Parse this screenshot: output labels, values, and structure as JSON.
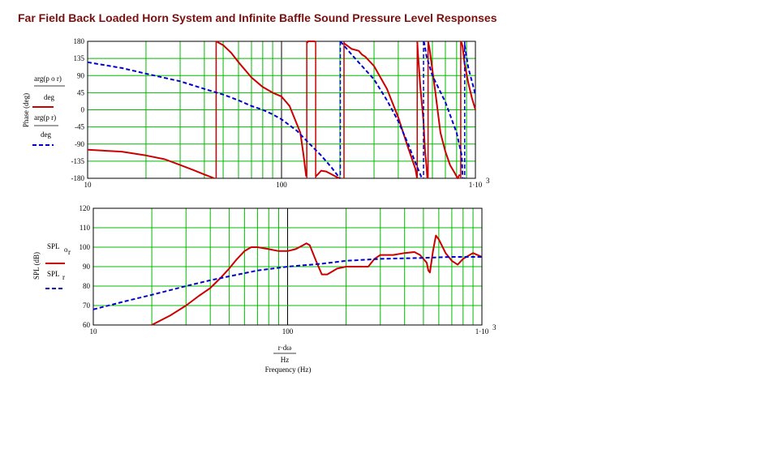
{
  "page_title": "Far Field Back Loaded Horn System and Infinite Baffle Sound Pressure Level Responses",
  "colors": {
    "title": "#7a1010",
    "grid": "#00bb00",
    "decade_line": "#000000",
    "horn_series": "#cc0000",
    "baffle_series": "#0000cc"
  },
  "chart_data": [
    {
      "type": "line",
      "ylabel": "Phase (deg)",
      "x_scale": "log",
      "xlim": [
        10,
        1000
      ],
      "ylim": [
        -180,
        180
      ],
      "y_ticks": [
        "180",
        "135",
        "90",
        "45",
        "0",
        "-45",
        "-90",
        "-135",
        "-180"
      ],
      "x_ticks": [
        "10",
        "100",
        "1·10"
      ],
      "x_tick_sup": "3",
      "grid": true,
      "legend": {
        "placement": "left",
        "series1_top": "arg(p o r)",
        "series1_bottom": "deg",
        "series2_top": "arg(p r)",
        "series2_bottom": "deg"
      },
      "series": [
        {
          "name": "arg(p o r)/deg",
          "color": "#cc0000",
          "style": "solid",
          "x": [
            10,
            15,
            20,
            25,
            30,
            35,
            40,
            45,
            46,
            50,
            55,
            60,
            70,
            80,
            90,
            100,
            110,
            125,
            130,
            134,
            135,
            137,
            138,
            140,
            145,
            148,
            149,
            150,
            155,
            160,
            170,
            185,
            195,
            200,
            210,
            230,
            250,
            260,
            270,
            300,
            350,
            400,
            450,
            490,
            500,
            501,
            505,
            510,
            520,
            540,
            550,
            560,
            565,
            570,
            580,
            620,
            660,
            700,
            740,
            780,
            810,
            830,
            840,
            850,
            860,
            880,
            920,
            960,
            1000
          ],
          "y": [
            -105,
            -110,
            -120,
            -130,
            -145,
            -158,
            -170,
            -180,
            180,
            170,
            150,
            125,
            85,
            60,
            45,
            35,
            10,
            -60,
            -120,
            -175,
            175,
            180,
            180,
            180,
            180,
            180,
            178,
            -175,
            -168,
            -160,
            -162,
            -172,
            -178,
            -180,
            175,
            160,
            155,
            145,
            140,
            115,
            55,
            -20,
            -100,
            -155,
            -180,
            180,
            150,
            120,
            60,
            -30,
            -110,
            -150,
            -180,
            180,
            160,
            50,
            -60,
            -110,
            -145,
            -165,
            -180,
            -170,
            180,
            175,
            165,
            120,
            70,
            30,
            0
          ]
        },
        {
          "name": "arg(p r)/deg",
          "color": "#0000cc",
          "style": "dash",
          "x": [
            10,
            15,
            20,
            30,
            40,
            50,
            60,
            70,
            80,
            90,
            100,
            120,
            140,
            160,
            180,
            200,
            201,
            230,
            260,
            300,
            350,
            400,
            450,
            500,
            530,
            540,
            545,
            560,
            600,
            700,
            800,
            850,
            860,
            880,
            920,
            1000
          ],
          "y": [
            125,
            110,
            95,
            75,
            55,
            40,
            25,
            10,
            0,
            -12,
            -25,
            -55,
            -90,
            -120,
            -150,
            -180,
            180,
            145,
            115,
            80,
            25,
            -30,
            -90,
            -150,
            -180,
            180,
            175,
            140,
            90,
            20,
            -60,
            -120,
            -180,
            170,
            110,
            40
          ]
        }
      ]
    },
    {
      "type": "line",
      "ylabel": "SPL (dB)",
      "xlabel": "Frequency (Hz)",
      "xlabel_top": "r·dω",
      "xlabel_den": "Hz",
      "x_scale": "log",
      "xlim": [
        10,
        1000
      ],
      "ylim": [
        60,
        120
      ],
      "y_ticks": [
        "120",
        "110",
        "100",
        "90",
        "80",
        "70",
        "60"
      ],
      "x_ticks": [
        "10",
        "100",
        "1·10"
      ],
      "x_tick_sup": "3",
      "grid": true,
      "legend": {
        "placement": "left",
        "series1": "SPL",
        "series1_sub": "o",
        "series1_sub2": "r",
        "series2": "SPL",
        "series2_sub": "r"
      },
      "series": [
        {
          "name": "SPL o r",
          "color": "#cc0000",
          "style": "solid",
          "x": [
            20,
            25,
            30,
            35,
            40,
            45,
            50,
            55,
            60,
            65,
            70,
            80,
            90,
            100,
            110,
            120,
            125,
            130,
            140,
            150,
            160,
            180,
            200,
            230,
            260,
            280,
            300,
            350,
            400,
            450,
            480,
            500,
            520,
            530,
            540,
            560,
            580,
            600,
            650,
            700,
            750,
            800,
            900,
            1000
          ],
          "y": [
            60,
            65,
            70,
            75,
            79,
            84,
            89,
            94,
            98,
            100,
            100,
            99,
            98,
            98,
            99,
            101,
            102,
            101,
            93,
            86,
            86,
            89,
            90,
            90,
            90,
            94,
            96,
            96,
            97,
            97.5,
            96,
            94,
            92,
            88,
            87,
            98,
            106,
            104,
            97,
            93,
            91,
            94,
            97,
            95
          ]
        },
        {
          "name": "SPL r",
          "color": "#0000cc",
          "style": "dash",
          "x": [
            10,
            15,
            20,
            30,
            40,
            50,
            70,
            100,
            150,
            200,
            300,
            500,
            700,
            1000
          ],
          "y": [
            68,
            72.5,
            75.5,
            80,
            83,
            85,
            88,
            90,
            91.5,
            93,
            94,
            94.5,
            95,
            95
          ]
        }
      ]
    }
  ]
}
